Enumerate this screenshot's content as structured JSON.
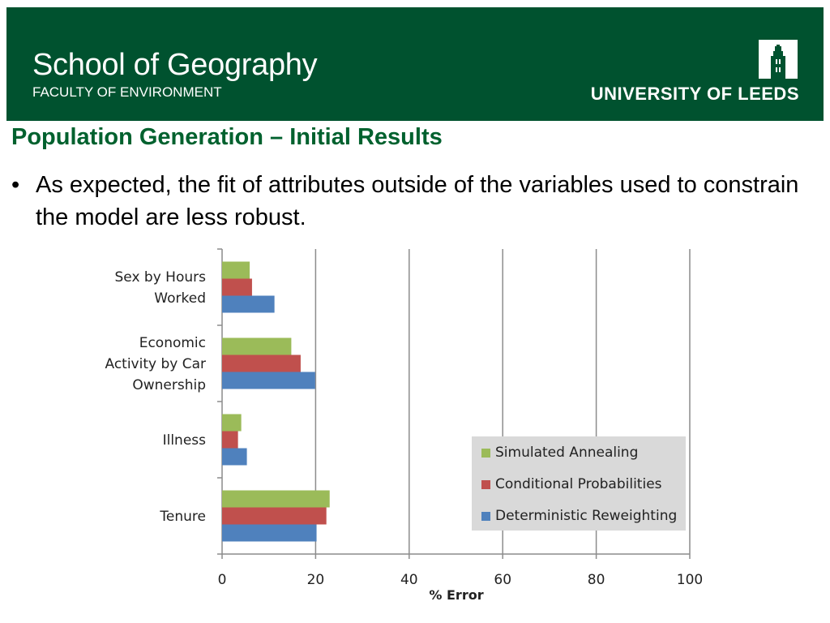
{
  "header": {
    "school": "School of Geography",
    "faculty": "FACULTY OF ENVIRONMENT",
    "university": "UNIVERSITY OF LEEDS",
    "logo_icon": "tower-logo-icon"
  },
  "slide": {
    "title": "Population Generation – Initial Results",
    "bullet_marker": "•",
    "bullet": "As expected, the fit of attributes outside of the variables used to constrain the model are less robust."
  },
  "chart_data": {
    "type": "bar",
    "orientation": "horizontal",
    "categories": [
      [
        "Sex by Hours",
        "Worked"
      ],
      [
        "Economic",
        "Activity by Car",
        "Ownership"
      ],
      [
        "Illness"
      ],
      [
        "Tenure"
      ]
    ],
    "series": [
      {
        "name": "Simulated Annealing",
        "color": "#9bbb59",
        "values": [
          5.9,
          14.8,
          4.1,
          23.0
        ]
      },
      {
        "name": "Conditional Probabilities",
        "color": "#c0504d",
        "values": [
          6.4,
          16.8,
          3.4,
          22.3
        ]
      },
      {
        "name": "Deterministic Reweighting",
        "color": "#4f81bd",
        "values": [
          11.2,
          19.9,
          5.3,
          20.2
        ]
      }
    ],
    "xlabel": "% Error",
    "ylabel": "",
    "xlim": [
      0,
      100
    ],
    "xticks": [
      0,
      20,
      40,
      60,
      80,
      100
    ],
    "grid": true,
    "legend_position": "bottom-right"
  }
}
